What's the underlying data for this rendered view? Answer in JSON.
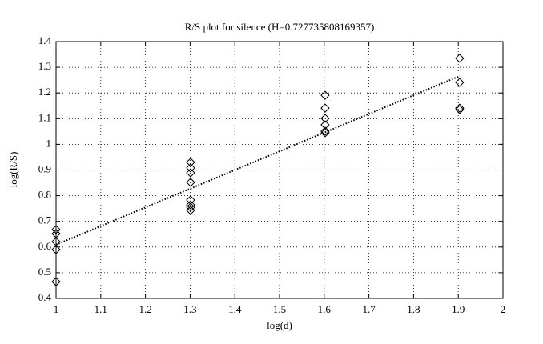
{
  "chart_data": {
    "type": "scatter",
    "title": "R/S plot for silence (H=0.727735808169357)",
    "x_label": "log(d)",
    "y_label": "log(R/S)",
    "x": [
      1,
      1,
      1,
      1,
      1,
      1.301,
      1.301,
      1.301,
      1.301,
      1.301,
      1.301,
      1.301,
      1.301,
      1.602,
      1.602,
      1.602,
      1.602,
      1.602,
      1.602,
      1.903,
      1.903,
      1.903,
      1.903
    ],
    "values": [
      0.465,
      0.59,
      0.621,
      0.652,
      0.668,
      0.93,
      0.908,
      0.889,
      0.852,
      0.783,
      0.764,
      0.755,
      0.743,
      1.191,
      1.141,
      1.101,
      1.076,
      1.051,
      1.045,
      1.335,
      1.241,
      1.141,
      1.135
    ],
    "color": "#000000",
    "fit": {
      "x": [
        1,
        1.903
      ],
      "values": [
        0.609,
        1.266
      ]
    },
    "xlim": [
      1,
      2
    ],
    "xticks": [
      1,
      1.1,
      1.2,
      1.3,
      1.4,
      1.5,
      1.6,
      1.7,
      1.8,
      1.9,
      2
    ],
    "ylim": [
      0.4,
      1.4
    ],
    "yticks": [
      0.4,
      0.5,
      0.6,
      0.7,
      0.8,
      0.9,
      1,
      1.1,
      1.2,
      1.3,
      1.4
    ],
    "grid": true
  }
}
